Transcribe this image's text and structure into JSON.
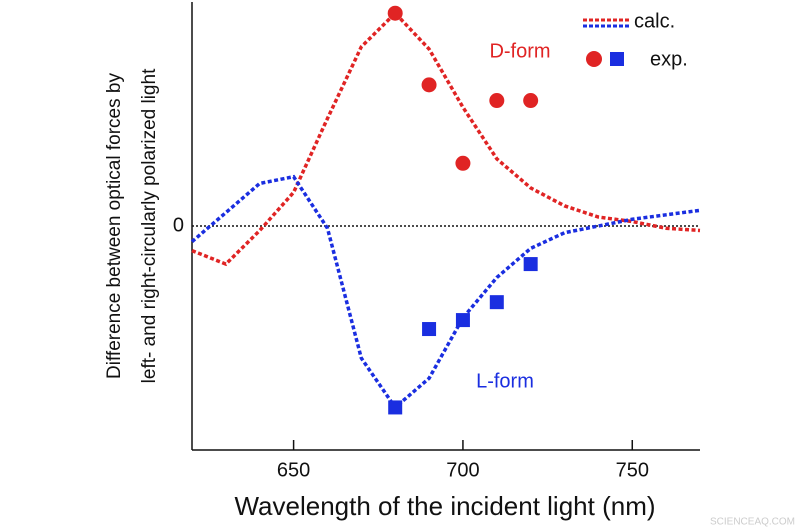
{
  "chart_data": {
    "type": "line_scatter",
    "x_label": "Wavelength of the incident light (nm)",
    "y_label": [
      "Difference between optical forces by",
      "left- and right-circularly polarized light"
    ],
    "xlim": [
      620,
      770
    ],
    "xticks": [
      650,
      700,
      750
    ],
    "ylim": [
      -1,
      1
    ],
    "yticks": [
      0
    ],
    "legend": {
      "calc": "calc.",
      "exp": "exp."
    },
    "x": [
      620,
      630,
      640,
      650,
      660,
      670,
      680,
      690,
      700,
      710,
      720,
      730,
      740,
      750,
      760,
      770
    ],
    "exp_x": [
      680,
      690,
      700,
      710,
      720
    ],
    "series": [
      {
        "name": "D-form",
        "color": "#e02424",
        "marker": "circle",
        "calc": [
          -0.11,
          -0.17,
          -0.02,
          0.15,
          0.48,
          0.8,
          0.95,
          0.79,
          0.53,
          0.3,
          0.17,
          0.09,
          0.04,
          0.02,
          -0.01,
          -0.02
        ],
        "exp": [
          0.95,
          0.63,
          0.28,
          0.56,
          0.56
        ]
      },
      {
        "name": "L-form",
        "color": "#1a2ee0",
        "marker": "square",
        "calc": [
          -0.07,
          0.06,
          0.19,
          0.22,
          -0.01,
          -0.59,
          -0.81,
          -0.68,
          -0.41,
          -0.23,
          -0.1,
          -0.03,
          0.0,
          0.03,
          0.05,
          0.07
        ],
        "exp": [
          -0.81,
          -0.46,
          -0.42,
          -0.34,
          -0.17
        ]
      }
    ],
    "watermark": "SCIENCEAQ.COM"
  }
}
